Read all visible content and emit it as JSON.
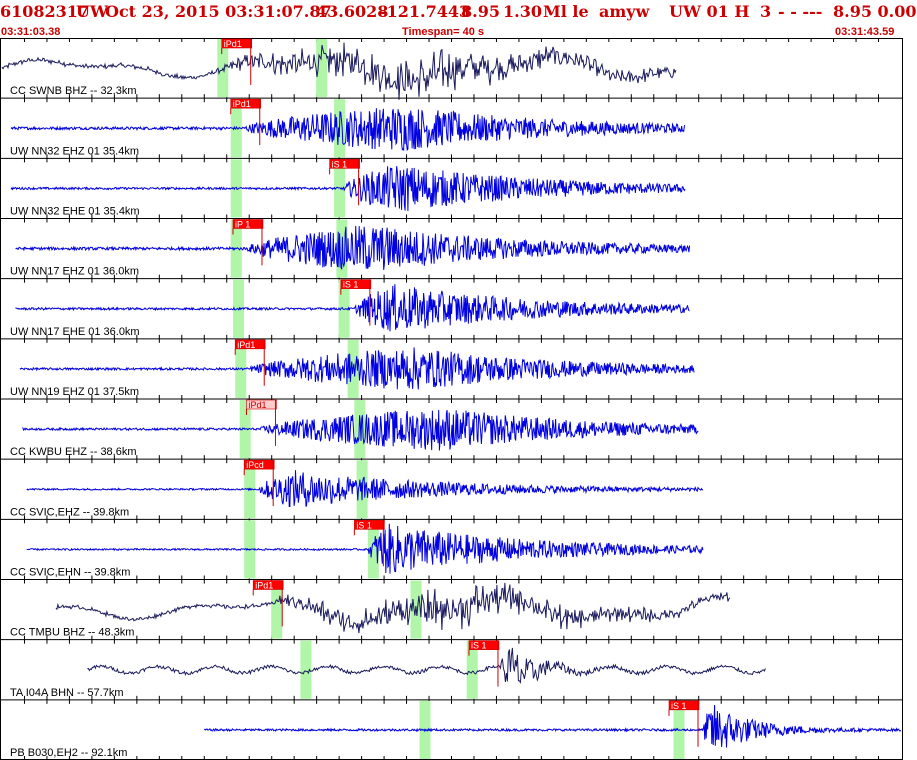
{
  "header": {
    "event_id": "61082317",
    "network": "UW",
    "datetime": "Oct 23, 2015 03:31:07.87",
    "lat": "43.6028",
    "lon": "-121.7443",
    "depth": "8.95",
    "magnitude": "1.30",
    "mag_type": "Ml le",
    "author": "amyw",
    "source": "UW 01 H",
    "quality": "3",
    "dashes": "- - ---",
    "trailing_values": "8.95 0.00"
  },
  "timebar": {
    "start_time": "03:31:03.38",
    "timespan": "Timespan=  40 s",
    "end_time": "03:31:43.59"
  },
  "colors": {
    "title_red": "#cc0000",
    "pick_red": "#ff0000",
    "pick_pink": "#ffcccc",
    "green_window": "#b0f5a8",
    "trace_blue": "#0000e0",
    "trace_navy": "#1a1a5e"
  },
  "channels": [
    {
      "label": "CC SWNB BHZ -- 32.3km",
      "pick_label": "iPd1",
      "pick_style": "red",
      "trace_color": "navy",
      "style": "lowfreq",
      "start_s": 0.0,
      "end_s": 30.0,
      "green_s": [
        9.8,
        14.2
      ],
      "pick_s": 10.4,
      "onset_s": 9.8,
      "peak_s": 19.0,
      "peak_amp": 0.9,
      "noise": 0.1
    },
    {
      "label": "UW NN32 EHZ 01 35.4km",
      "pick_label": "iPd1",
      "pick_style": "red",
      "trace_color": "blue",
      "style": "hf",
      "start_s": 0.4,
      "end_s": 30.4,
      "green_s": [
        10.4,
        15.0
      ],
      "pick_s": 10.8,
      "onset_s": 10.8,
      "peak_s": 17.8,
      "peak_amp": 0.85,
      "noise": 0.05
    },
    {
      "label": "UW NN32 EHE 01 35.4km",
      "pick_label": "iS 1",
      "pick_style": "red",
      "trace_color": "blue",
      "style": "hf",
      "start_s": 0.4,
      "end_s": 30.4,
      "green_s": [
        10.4,
        15.0
      ],
      "pick_s": 15.2,
      "onset_s": 15.2,
      "peak_s": 17.6,
      "peak_amp": 0.9,
      "noise": 0.04
    },
    {
      "label": "UW NN17 EHZ 01 36.0km",
      "pick_label": "iP 1",
      "pick_style": "red",
      "trace_color": "blue",
      "style": "hf",
      "start_s": 0.6,
      "end_s": 30.6,
      "green_s": [
        10.4,
        15.1
      ],
      "pick_s": 10.9,
      "onset_s": 10.9,
      "peak_s": 16.4,
      "peak_amp": 0.9,
      "noise": 0.05
    },
    {
      "label": "UW NN17 EHE 01 36.0km",
      "pick_label": "iS 1",
      "pick_style": "red",
      "trace_color": "blue",
      "style": "hf",
      "start_s": 0.6,
      "end_s": 30.6,
      "green_s": [
        10.5,
        15.2
      ],
      "pick_s": 15.7,
      "onset_s": 15.7,
      "peak_s": 17.4,
      "peak_amp": 0.9,
      "noise": 0.04
    },
    {
      "label": "UW NN19 EHZ 01 37.5km",
      "pick_label": "iPd1",
      "pick_style": "red",
      "trace_color": "blue",
      "style": "hf",
      "start_s": 0.8,
      "end_s": 30.8,
      "green_s": [
        10.6,
        15.6
      ],
      "pick_s": 11.0,
      "onset_s": 11.0,
      "peak_s": 18.4,
      "peak_amp": 0.8,
      "noise": 0.04
    },
    {
      "label": "CC KWBU EHZ -- 38.6km",
      "pick_label": "iPd1",
      "pick_style": "pink",
      "trace_color": "blue",
      "style": "hf",
      "start_s": 0.9,
      "end_s": 31.0,
      "green_s": [
        10.8,
        15.9
      ],
      "pick_s": 11.5,
      "onset_s": 11.5,
      "peak_s": 19.6,
      "peak_amp": 0.8,
      "noise": 0.04
    },
    {
      "label": "CC SVIC,EHZ -- 39.8km",
      "pick_label": "iPcd",
      "pick_style": "red",
      "trace_color": "blue",
      "style": "hf",
      "start_s": 1.1,
      "end_s": 31.2,
      "green_s": [
        11.0,
        16.0
      ],
      "pick_s": 11.4,
      "onset_s": 11.4,
      "peak_s": 13.0,
      "peak_amp": 0.7,
      "noise": 0.03
    },
    {
      "label": "CC SVIC,EHN -- 39.8km",
      "pick_label": "iS 1",
      "pick_style": "red",
      "trace_color": "blue",
      "style": "hf",
      "start_s": 1.1,
      "end_s": 31.2,
      "green_s": [
        11.0,
        16.5
      ],
      "pick_s": 16.3,
      "onset_s": 16.3,
      "peak_s": 17.1,
      "peak_amp": 0.95,
      "noise": 0.03
    },
    {
      "label": "CC TMBU BHZ -- 48.3km",
      "pick_label": "iPd1",
      "pick_style": "red",
      "trace_color": "navy",
      "style": "lowfreq",
      "start_s": 2.4,
      "end_s": 32.4,
      "green_s": [
        12.2,
        18.4
      ],
      "pick_s": 11.8,
      "onset_s": 12.0,
      "peak_s": 20.5,
      "peak_amp": 0.8,
      "noise": 0.08
    },
    {
      "label": "TA I04A BHN -- 57.7km",
      "pick_label": "iS 1",
      "pick_style": "red",
      "trace_color": "navy",
      "style": "lowfreq_burst",
      "start_s": 3.8,
      "end_s": 34.0,
      "green_s": [
        13.5,
        20.9
      ],
      "pick_s": 21.4,
      "onset_s": 22.2,
      "peak_s": 22.6,
      "peak_amp": 1.0,
      "noise": 0.06
    },
    {
      "label": "PB B030,EH2 -- 92.1km",
      "pick_label": "iS 1",
      "pick_style": "red",
      "trace_color": "blue",
      "style": "hf_late",
      "start_s": 9.0,
      "end_s": 40.0,
      "green_s": [
        18.8,
        30.1
      ],
      "pick_s": 30.3,
      "onset_s": 31.2,
      "peak_s": 31.6,
      "peak_amp": 1.0,
      "noise": 0.04
    }
  ]
}
